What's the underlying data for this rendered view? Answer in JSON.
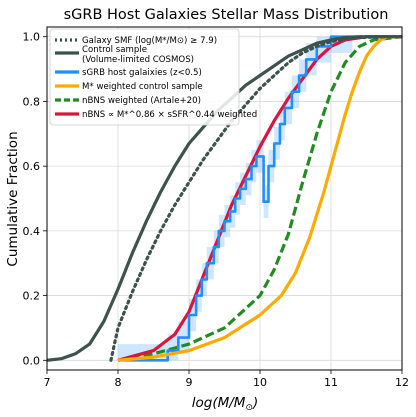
{
  "chart_data": {
    "type": "line",
    "title": "sGRB Host Galaxies Stellar Mass Distribution",
    "xlabel_main": "log(M/M",
    "xlabel_sub": "⊙",
    "xlabel_end": ")",
    "ylabel": "Cumulative Fraction",
    "xlim": [
      7,
      12
    ],
    "ylim": [
      0,
      1.0
    ],
    "xticks": [
      "7",
      "8",
      "9",
      "10",
      "11",
      "12"
    ],
    "yticks": [
      "0.0",
      "0.2",
      "0.4",
      "0.6",
      "0.8",
      "1.0"
    ],
    "grid": true,
    "legend_position": "upper-left",
    "legend": [
      "Galaxy SMF (log(M*/M⊙) ≥ 7.9)",
      "Control sample",
      "(Volume-limited COSMOS)",
      "sGRB host galaixies (z<0.5)",
      "M* weighted control sample",
      "nBNS weighted (Artale+20)",
      "nBNS ∝ M*^0.86 × sSFR^0.44 weighted"
    ],
    "series": [
      {
        "name": "Galaxy SMF (log(M*/M⊙) ≥ 7.9)",
        "color": "#3b524d",
        "style": "dotted",
        "x": [
          7.9,
          8.0,
          8.2,
          8.4,
          8.6,
          8.8,
          9.0,
          9.2,
          9.4,
          9.6,
          9.8,
          10.0,
          10.2,
          10.4,
          10.6,
          10.8,
          11.0,
          11.2,
          11.4,
          11.6,
          11.8,
          12.0
        ],
        "y": [
          0.0,
          0.1,
          0.21,
          0.31,
          0.4,
          0.48,
          0.55,
          0.62,
          0.68,
          0.74,
          0.79,
          0.84,
          0.88,
          0.92,
          0.95,
          0.97,
          0.985,
          0.993,
          0.997,
          0.999,
          1.0,
          1.0
        ]
      },
      {
        "name": "Control sample",
        "color": "#3b524d",
        "style": "solid",
        "x": [
          7.0,
          7.2,
          7.4,
          7.6,
          7.8,
          8.0,
          8.2,
          8.4,
          8.6,
          8.8,
          9.0,
          9.2,
          9.4,
          9.6,
          9.8,
          10.0,
          10.2,
          10.4,
          10.6,
          10.8,
          11.0,
          11.2,
          11.4,
          12.0
        ],
        "y": [
          0.0,
          0.005,
          0.02,
          0.05,
          0.12,
          0.22,
          0.33,
          0.43,
          0.52,
          0.6,
          0.67,
          0.72,
          0.77,
          0.81,
          0.85,
          0.88,
          0.91,
          0.94,
          0.96,
          0.98,
          0.99,
          0.998,
          1.0,
          1.0
        ]
      },
      {
        "name": "sGRB host galaixies (z<0.5)",
        "color": "#1f8fff",
        "style": "step",
        "x": [
          8.0,
          8.7,
          8.85,
          9.0,
          9.1,
          9.18,
          9.25,
          9.35,
          9.42,
          9.5,
          9.58,
          9.65,
          9.72,
          9.8,
          9.88,
          9.95,
          10.05,
          10.12,
          10.2,
          10.28,
          10.35,
          10.45,
          10.55,
          10.65,
          10.8,
          11.0,
          11.3
        ],
        "y": [
          0.0,
          0.03,
          0.07,
          0.14,
          0.2,
          0.25,
          0.3,
          0.35,
          0.4,
          0.43,
          0.46,
          0.5,
          0.53,
          0.56,
          0.6,
          0.63,
          0.49,
          0.6,
          0.67,
          0.73,
          0.78,
          0.83,
          0.88,
          0.93,
          0.97,
          1.0,
          1.0
        ]
      },
      {
        "name": "M* weighted control sample",
        "color": "#ffaa00",
        "style": "solid",
        "x": [
          8.0,
          8.5,
          9.0,
          9.5,
          10.0,
          10.3,
          10.5,
          10.7,
          10.9,
          11.0,
          11.1,
          11.2,
          11.3,
          11.4,
          11.5,
          11.6,
          11.7,
          11.8,
          12.0
        ],
        "y": [
          0.0,
          0.01,
          0.03,
          0.07,
          0.14,
          0.2,
          0.27,
          0.38,
          0.52,
          0.6,
          0.68,
          0.76,
          0.83,
          0.89,
          0.94,
          0.97,
          0.99,
          1.0,
          1.0
        ]
      },
      {
        "name": "nBNS weighted (Artale+20)",
        "color": "#228b22",
        "style": "dashed",
        "x": [
          8.0,
          8.5,
          9.0,
          9.5,
          10.0,
          10.2,
          10.4,
          10.6,
          10.8,
          11.0,
          11.2,
          11.4,
          11.6,
          12.0
        ],
        "y": [
          0.0,
          0.02,
          0.05,
          0.1,
          0.2,
          0.28,
          0.39,
          0.55,
          0.7,
          0.83,
          0.92,
          0.97,
          0.99,
          1.0
        ]
      },
      {
        "name": "nBNS ∝ M*^0.86 × sSFR^0.44 weighted",
        "color": "#dc143c",
        "style": "solid",
        "x": [
          8.0,
          8.5,
          8.8,
          9.0,
          9.2,
          9.4,
          9.6,
          9.8,
          10.0,
          10.2,
          10.4,
          10.6,
          10.8,
          11.0,
          11.2,
          11.5,
          12.0
        ],
        "y": [
          0.0,
          0.03,
          0.08,
          0.15,
          0.26,
          0.37,
          0.48,
          0.57,
          0.66,
          0.74,
          0.81,
          0.87,
          0.93,
          0.97,
          0.99,
          1.0,
          1.0
        ]
      }
    ]
  }
}
